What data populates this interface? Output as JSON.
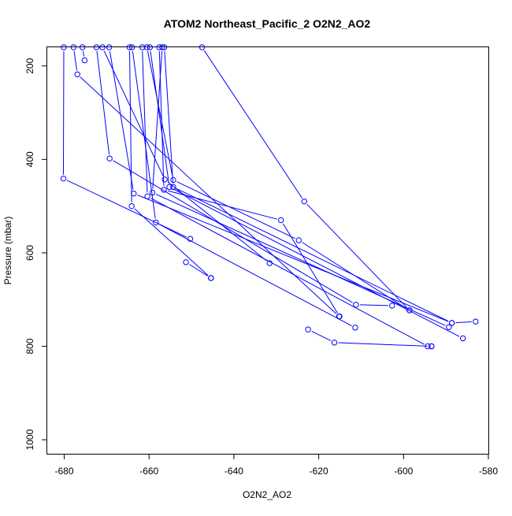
{
  "chart_data": {
    "type": "line",
    "title": "ATOM2 Northeast_Pacific_2 O2N2_AO2",
    "xlabel": "O2N2_AO2",
    "ylabel": "Pressure (mbar)",
    "xlim": [
      -684,
      -580
    ],
    "ylim": [
      1030,
      160
    ],
    "y_reversed": true,
    "x_ticks": [
      -680,
      -660,
      -640,
      -620,
      -600,
      -580
    ],
    "y_ticks": [
      200,
      400,
      600,
      800,
      1000
    ],
    "grid": false,
    "legend": "none",
    "color": "#0000ff",
    "marker": "open-circle",
    "segments": [
      {
        "points": [
          {
            "x": -675.7,
            "y": 160
          },
          {
            "x": -675.2,
            "y": 188
          }
        ]
      },
      {
        "points": [
          {
            "x": -680.1,
            "y": 160
          },
          {
            "x": -680.2,
            "y": 441
          },
          {
            "x": -650.3,
            "y": 570
          }
        ]
      },
      {
        "points": [
          {
            "x": -677.8,
            "y": 160
          },
          {
            "x": -676.9,
            "y": 218
          },
          {
            "x": -615.2,
            "y": 736
          }
        ]
      },
      {
        "points": [
          {
            "x": -672.4,
            "y": 160
          },
          {
            "x": -669.3,
            "y": 398
          },
          {
            "x": -611.2,
            "y": 711
          },
          {
            "x": -602.7,
            "y": 713
          }
        ]
      },
      {
        "points": [
          {
            "x": -669.4,
            "y": 160
          },
          {
            "x": -663.6,
            "y": 473
          },
          {
            "x": -588.6,
            "y": 750
          },
          {
            "x": -583.0,
            "y": 747
          }
        ]
      },
      {
        "points": [
          {
            "x": -664.6,
            "y": 160
          },
          {
            "x": -664.1,
            "y": 500
          },
          {
            "x": -645.4,
            "y": 654
          }
        ]
      },
      {
        "points": [
          {
            "x": -661.6,
            "y": 160
          },
          {
            "x": -660.4,
            "y": 479
          },
          {
            "x": -594.3,
            "y": 800
          },
          {
            "x": -593.4,
            "y": 800
          }
        ]
      },
      {
        "points": [
          {
            "x": -656.9,
            "y": 160
          },
          {
            "x": -659.2,
            "y": 471
          },
          {
            "x": -589.3,
            "y": 759
          }
        ]
      },
      {
        "points": [
          {
            "x": -664.0,
            "y": 160
          },
          {
            "x": -658.4,
            "y": 535
          },
          {
            "x": -611.4,
            "y": 760
          }
        ]
      },
      {
        "points": [
          {
            "x": -671.0,
            "y": 160
          },
          {
            "x": -656.3,
            "y": 443
          },
          {
            "x": -631.6,
            "y": 622
          }
        ]
      },
      {
        "points": [
          {
            "x": -657.6,
            "y": 160
          },
          {
            "x": -656.5,
            "y": 465
          },
          {
            "x": -628.9,
            "y": 530
          },
          {
            "x": -615.1,
            "y": 736
          }
        ]
      },
      {
        "points": [
          {
            "x": -659.8,
            "y": 160
          },
          {
            "x": -655.2,
            "y": 459
          },
          {
            "x": -586.0,
            "y": 783
          }
        ]
      },
      {
        "points": [
          {
            "x": -660.5,
            "y": 160
          },
          {
            "x": -654.3,
            "y": 444
          },
          {
            "x": -624.7,
            "y": 573
          },
          {
            "x": -598.6,
            "y": 723
          }
        ]
      },
      {
        "points": [
          {
            "x": -656.4,
            "y": 160
          },
          {
            "x": -654.3,
            "y": 459
          },
          {
            "x": -588.6,
            "y": 750
          }
        ]
      },
      {
        "points": [
          {
            "x": -647.5,
            "y": 160
          },
          {
            "x": -623.4,
            "y": 490
          },
          {
            "x": -598.6,
            "y": 723
          }
        ]
      },
      {
        "points": [
          {
            "x": -651.3,
            "y": 620
          },
          {
            "x": -645.4,
            "y": 654
          }
        ]
      },
      {
        "points": [
          {
            "x": -622.5,
            "y": 764
          },
          {
            "x": -616.3,
            "y": 792
          },
          {
            "x": -593.4,
            "y": 800
          }
        ]
      }
    ]
  }
}
